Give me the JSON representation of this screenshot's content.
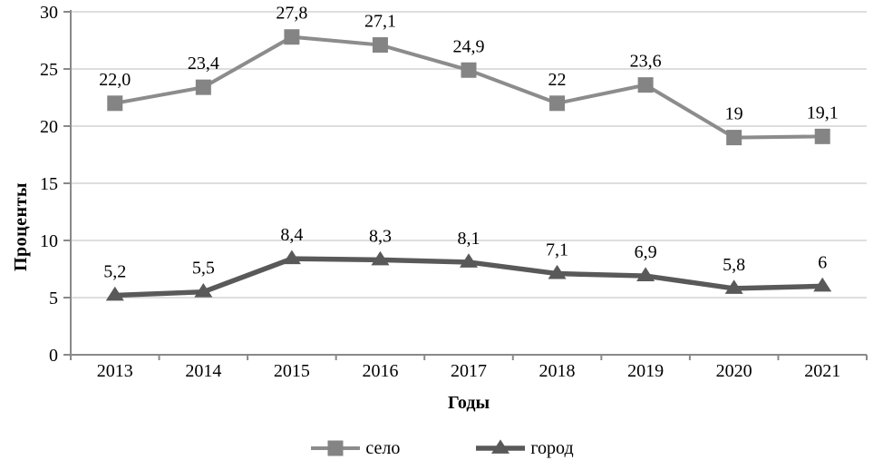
{
  "chart_data": {
    "type": "line",
    "title": "",
    "categories": [
      "2013",
      "2014",
      "2015",
      "2016",
      "2017",
      "2018",
      "2019",
      "2020",
      "2021"
    ],
    "series": [
      {
        "name": "село",
        "marker": "square",
        "color": "#848484",
        "line_color": "#8c8c8c",
        "line_width": 4,
        "marker_size": 17,
        "values": [
          22.0,
          23.4,
          27.8,
          27.1,
          24.9,
          22,
          23.6,
          19,
          19.1
        ],
        "labels": [
          "22,0",
          "23,4",
          "27,8",
          "27,1",
          "24,9",
          "22",
          "23,6",
          "19",
          "19,1"
        ]
      },
      {
        "name": "город",
        "marker": "triangle",
        "color": "#595959",
        "line_color": "#595959",
        "line_width": 5.5,
        "marker_size": 20,
        "values": [
          5.2,
          5.5,
          8.4,
          8.3,
          8.1,
          7.1,
          6.9,
          5.8,
          6
        ],
        "labels": [
          "5,2",
          "5,5",
          "8,4",
          "8,3",
          "8,1",
          "7,1",
          "6,9",
          "5,8",
          "6"
        ]
      }
    ],
    "xlabel": "Годы",
    "ylabel": "Проценты",
    "ylim": [
      0,
      30
    ],
    "yticks": [
      0,
      5,
      10,
      15,
      20,
      25,
      30
    ],
    "grid": true,
    "legend_position": "bottom"
  },
  "colors": {
    "background": "#ffffff",
    "gridline": "#d3d3d3",
    "axis": "#898989",
    "text": "#000000"
  }
}
